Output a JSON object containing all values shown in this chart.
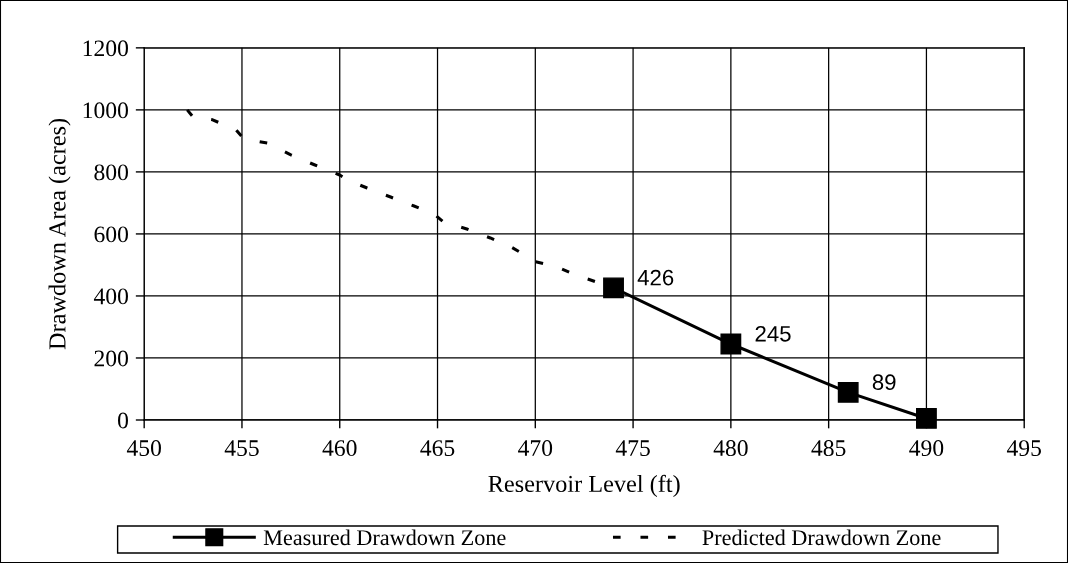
{
  "chart_data": {
    "type": "line",
    "xlabel": "Reservoir Level (ft)",
    "ylabel": "Drawdown Area (acres)",
    "xlim": [
      450,
      495
    ],
    "xticks": [
      450,
      455,
      460,
      465,
      470,
      475,
      480,
      485,
      490,
      495
    ],
    "ylim": [
      0,
      1200
    ],
    "yticks": [
      0,
      200,
      400,
      600,
      800,
      1000,
      1200
    ],
    "grid": true,
    "legend": "bottom",
    "series": [
      {
        "name": "Measured Drawdown Zone",
        "color": "#000000",
        "marker": "square",
        "line_style": "solid",
        "x": [
          474,
          480,
          486,
          490
        ],
        "values": [
          426,
          245,
          89,
          5
        ],
        "value_labels": [
          "426",
          "245",
          "89",
          null
        ]
      },
      {
        "name": "Predicted Drawdown Zone",
        "color": "#000000",
        "marker": "none",
        "line_style": "dashed",
        "x": [
          452.2,
          452.5,
          453.5,
          454.7,
          455.1,
          456.3,
          457.5,
          458.7,
          460.0,
          460.4,
          461.4,
          462.6,
          463.8,
          464.8,
          465.3,
          466.5,
          467.7,
          468.7,
          469.6,
          469.9,
          471.1,
          472.1,
          474
        ],
        "values": [
          1000,
          977,
          968,
          935,
          906,
          893,
          855,
          823,
          790,
          774,
          748,
          719,
          690,
          665,
          639,
          616,
          587,
          560,
          527,
          512,
          494,
          467,
          426
        ]
      }
    ]
  }
}
